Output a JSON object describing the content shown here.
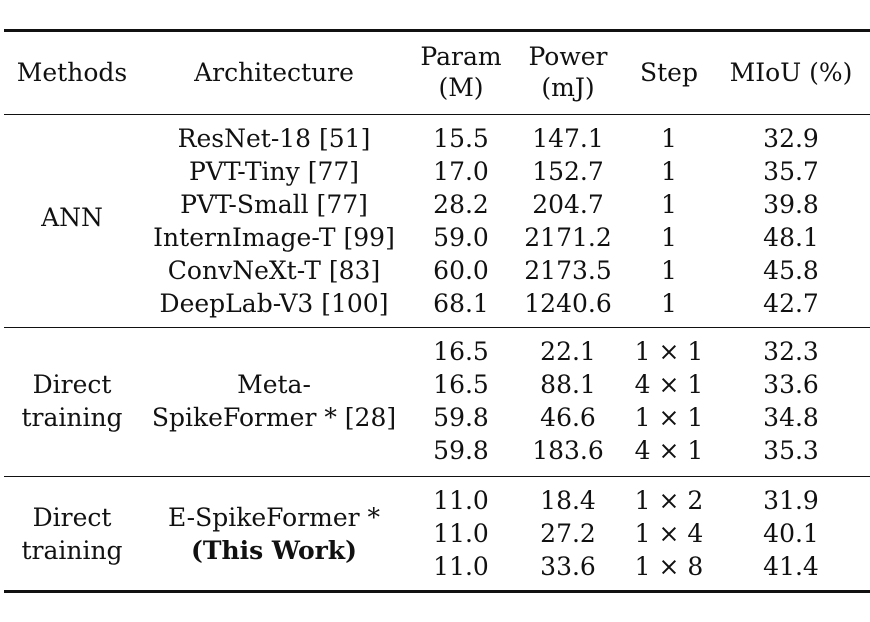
{
  "table": {
    "headers": {
      "methods": "Methods",
      "architecture": "Architecture",
      "param_line1": "Param",
      "param_line2": "(M)",
      "power_line1": "Power",
      "power_line2": "(mJ)",
      "step": "Step",
      "miou": "MIoU (%)"
    },
    "groups": [
      {
        "method": "ANN",
        "rows": [
          {
            "architecture": "ResNet-18 [51]",
            "param": "15.5",
            "power": "147.1",
            "step": "1",
            "miou": "32.9"
          },
          {
            "architecture": "PVT-Tiny [77]",
            "param": "17.0",
            "power": "152.7",
            "step": "1",
            "miou": "35.7"
          },
          {
            "architecture": "PVT-Small [77]",
            "param": "28.2",
            "power": "204.7",
            "step": "1",
            "miou": "39.8"
          },
          {
            "architecture": "InternImage-T [99]",
            "param": "59.0",
            "power": "2171.2",
            "step": "1",
            "miou": "48.1"
          },
          {
            "architecture": "ConvNeXt-T [83]",
            "param": "60.0",
            "power": "2173.5",
            "step": "1",
            "miou": "45.8"
          },
          {
            "architecture": "DeepLab-V3 [100]",
            "param": "68.1",
            "power": "1240.6",
            "step": "1",
            "miou": "42.7"
          }
        ]
      },
      {
        "method_line1": "Direct",
        "method_line2": "training",
        "arch_line1": "Meta-",
        "arch_line2": "SpikeFormer * [28]",
        "rows": [
          {
            "param": "16.5",
            "power": "22.1",
            "step": "1 × 1",
            "miou": "32.3"
          },
          {
            "param": "16.5",
            "power": "88.1",
            "step": "4 × 1",
            "miou": "33.6"
          },
          {
            "param": "59.8",
            "power": "46.6",
            "step": "1 × 1",
            "miou": "34.8"
          },
          {
            "param": "59.8",
            "power": "183.6",
            "step": "4 × 1",
            "miou": "35.3"
          }
        ]
      },
      {
        "method_line1": "Direct",
        "method_line2": "training",
        "arch_line1": "E-SpikeFormer *",
        "arch_line2": "(This Work)",
        "rows": [
          {
            "param": "11.0",
            "power": "18.4",
            "step": "1 × 2",
            "miou": "31.9"
          },
          {
            "param": "11.0",
            "power": "27.2",
            "step": "1 × 4",
            "miou": "40.1"
          },
          {
            "param": "11.0",
            "power": "33.6",
            "step": "1 × 8",
            "miou": "41.4"
          }
        ]
      }
    ]
  }
}
